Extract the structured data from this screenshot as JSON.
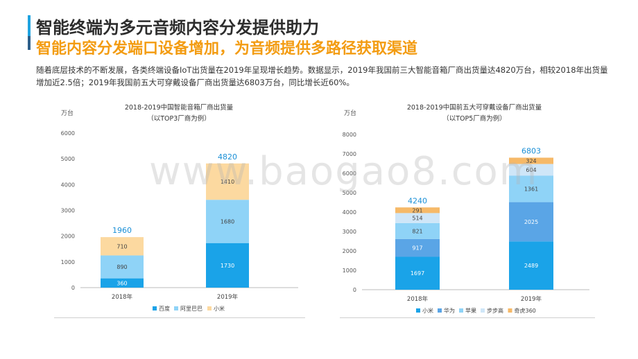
{
  "header": {
    "title": "智能终端为多元音频内容分发提供助力",
    "subtitle": "智能内容分发端口设备增加，为音频提供多路径获取渠道",
    "description": "随着底层技术的不断发展，各类终端设备IoT出货量在2019年呈现增长趋势。数据显示，2019年我国前三大智能音箱厂商出货量达4820万台，相较2018年出货量增加近2.5倍；2019年我国前五大可穿戴设备厂商出货量达6803万台，同比增长近60%。"
  },
  "watermark": "www.baogao8.com",
  "chart_data": [
    {
      "type": "bar",
      "stacked": true,
      "title": "2018-2019中国智能音箱厂商出货量",
      "subtitle": "（以TOP3厂商为例）",
      "ylabel": "万台",
      "ylim": [
        0,
        6000
      ],
      "yticks": [
        0,
        1000,
        2000,
        3000,
        4000,
        5000,
        6000
      ],
      "categories": [
        "2018年",
        "2019年"
      ],
      "series": [
        {
          "name": "百度",
          "values": [
            360,
            1730
          ],
          "color": "#1aa3e8"
        },
        {
          "name": "阿里巴巴",
          "values": [
            890,
            1680
          ],
          "color": "#8fd3f7"
        },
        {
          "name": "小米",
          "values": [
            710,
            1410
          ],
          "color": "#fcd9a0"
        }
      ],
      "totals": [
        1960,
        4820
      ],
      "legend_position": "bottom"
    },
    {
      "type": "bar",
      "stacked": true,
      "title": "2018-2019中国前五大可穿戴设备厂商出货量",
      "subtitle": "（以TOP5厂商为例）",
      "ylabel": "万台",
      "ylim": [
        0,
        8000
      ],
      "yticks": [
        0,
        1000,
        2000,
        3000,
        4000,
        5000,
        6000,
        7000,
        8000
      ],
      "categories": [
        "2018年",
        "2019年"
      ],
      "series": [
        {
          "name": "小米",
          "values": [
            1697,
            2489
          ],
          "color": "#1aa3e8"
        },
        {
          "name": "华为",
          "values": [
            917,
            2025
          ],
          "color": "#5aa5e6"
        },
        {
          "name": "苹果",
          "values": [
            821,
            1361
          ],
          "color": "#8fd3f7"
        },
        {
          "name": "步步高",
          "values": [
            514,
            604
          ],
          "color": "#cfe6f8"
        },
        {
          "name": "奇虎360",
          "values": [
            291,
            324
          ],
          "color": "#f6b968"
        }
      ],
      "totals": [
        4240,
        6803
      ],
      "legend_position": "bottom"
    }
  ]
}
